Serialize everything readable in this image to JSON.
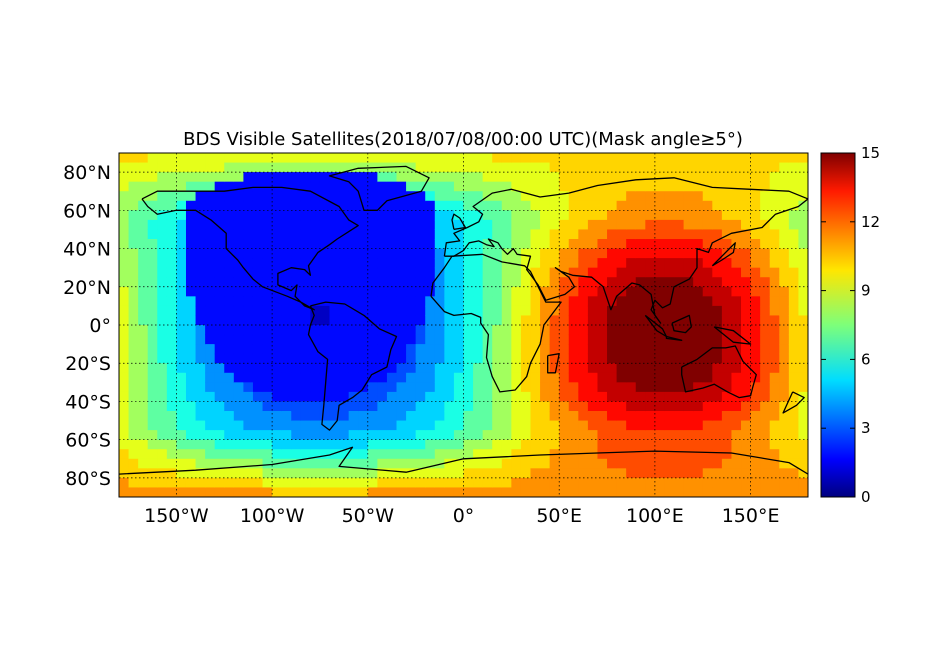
{
  "chart_data": {
    "type": "heatmap",
    "title": "BDS Visible Satellites(2018/07/08/00:00 UTC)(Mask angle≥5°)",
    "projection": "plate-carree",
    "xlim": [
      -180,
      180
    ],
    "ylim": [
      -90,
      90
    ],
    "x_ticks": [
      {
        "value": -150,
        "label": "150°W"
      },
      {
        "value": -100,
        "label": "100°W"
      },
      {
        "value": -50,
        "label": "50°W"
      },
      {
        "value": 0,
        "label": "0°"
      },
      {
        "value": 50,
        "label": "50°E"
      },
      {
        "value": 100,
        "label": "100°E"
      },
      {
        "value": 150,
        "label": "150°E"
      }
    ],
    "y_ticks": [
      {
        "value": 80,
        "label": "80°N"
      },
      {
        "value": 60,
        "label": "60°N"
      },
      {
        "value": 40,
        "label": "40°N"
      },
      {
        "value": 20,
        "label": "20°N"
      },
      {
        "value": 0,
        "label": "0°"
      },
      {
        "value": -20,
        "label": "20°S"
      },
      {
        "value": -40,
        "label": "40°S"
      },
      {
        "value": -60,
        "label": "60°S"
      },
      {
        "value": -80,
        "label": "80°S"
      }
    ],
    "grid": true,
    "grid_style": "dotted",
    "colormap": "jet",
    "clim": [
      0,
      15
    ],
    "colorbar_ticks": [
      0,
      3,
      6,
      9,
      12,
      15
    ],
    "grid_resolution_deg": 5,
    "field_model": {
      "description_of_peaks": "approximate visible-satellite count field",
      "hotspot_center": [
        105,
        -5
      ],
      "hotspot_peak": 14.5,
      "minimum_center": [
        -80,
        20
      ],
      "minimum_value": 0.5
    },
    "coastlines": true
  }
}
